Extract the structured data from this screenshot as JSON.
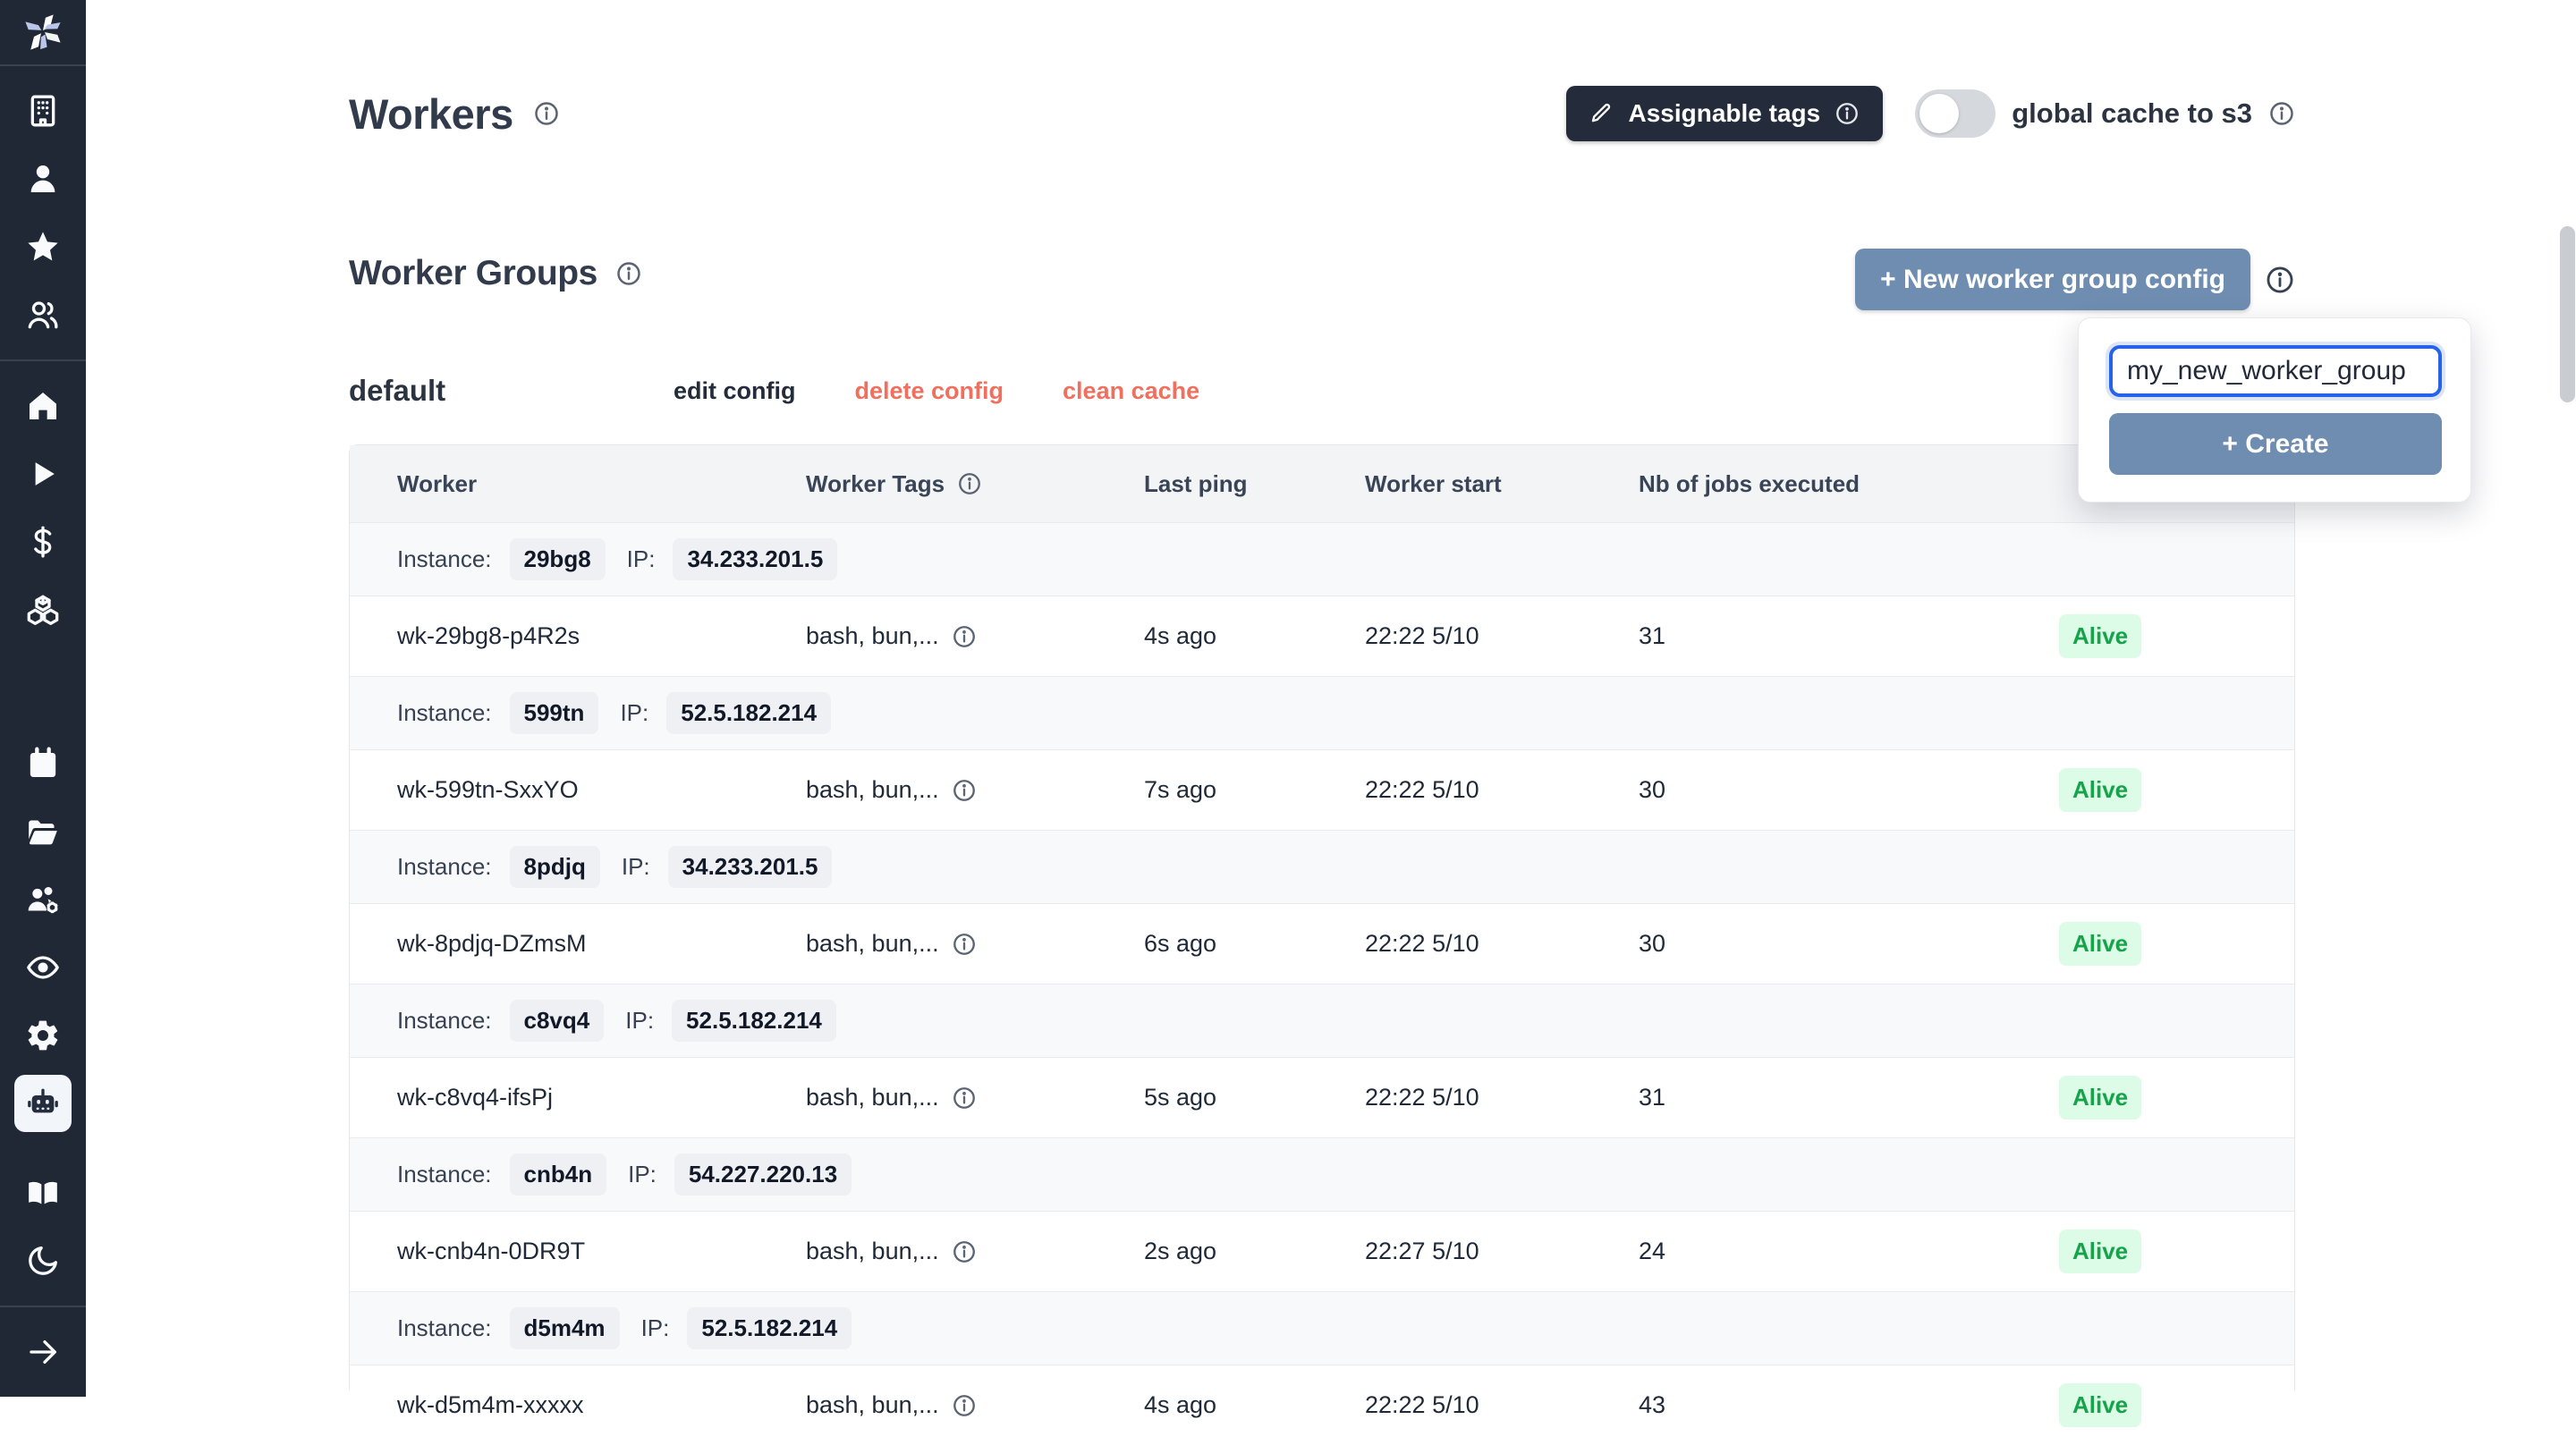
{
  "header": {
    "title": "Workers",
    "assignable_tags_label": "Assignable tags",
    "global_cache_label": "global cache to s3",
    "global_cache_enabled": false
  },
  "worker_groups": {
    "title": "Worker Groups",
    "new_button_label": "+ New worker group config",
    "popup": {
      "input_value": "my_new_worker_group",
      "create_label": "+ Create"
    }
  },
  "group": {
    "name": "default",
    "actions": [
      {
        "label": "edit config",
        "style": "dark"
      },
      {
        "label": "delete config",
        "style": "red"
      },
      {
        "label": "clean cache",
        "style": "red"
      }
    ]
  },
  "table": {
    "headers": [
      "Worker",
      "Worker Tags",
      "Last ping",
      "Worker start",
      "Nb of jobs executed"
    ],
    "header_has_info": [
      false,
      true,
      false,
      false,
      false
    ],
    "rows": [
      {
        "type": "instance",
        "label": "Instance:",
        "id": "29bg8",
        "ip_label": "IP:",
        "ip": "34.233.201.5"
      },
      {
        "type": "worker",
        "name": "wk-29bg8-p4R2s",
        "tags": "bash, bun,...",
        "ping": "4s ago",
        "start": "22:22 5/10",
        "jobs": "31",
        "status": "Alive"
      },
      {
        "type": "instance",
        "label": "Instance:",
        "id": "599tn",
        "ip_label": "IP:",
        "ip": "52.5.182.214"
      },
      {
        "type": "worker",
        "name": "wk-599tn-SxxYO",
        "tags": "bash, bun,...",
        "ping": "7s ago",
        "start": "22:22 5/10",
        "jobs": "30",
        "status": "Alive"
      },
      {
        "type": "instance",
        "label": "Instance:",
        "id": "8pdjq",
        "ip_label": "IP:",
        "ip": "34.233.201.5"
      },
      {
        "type": "worker",
        "name": "wk-8pdjq-DZmsM",
        "tags": "bash, bun,...",
        "ping": "6s ago",
        "start": "22:22 5/10",
        "jobs": "30",
        "status": "Alive"
      },
      {
        "type": "instance",
        "label": "Instance:",
        "id": "c8vq4",
        "ip_label": "IP:",
        "ip": "52.5.182.214"
      },
      {
        "type": "worker",
        "name": "wk-c8vq4-ifsPj",
        "tags": "bash, bun,...",
        "ping": "5s ago",
        "start": "22:22 5/10",
        "jobs": "31",
        "status": "Alive"
      },
      {
        "type": "instance",
        "label": "Instance:",
        "id": "cnb4n",
        "ip_label": "IP:",
        "ip": "54.227.220.13"
      },
      {
        "type": "worker",
        "name": "wk-cnb4n-0DR9T",
        "tags": "bash, bun,...",
        "ping": "2s ago",
        "start": "22:27 5/10",
        "jobs": "24",
        "status": "Alive"
      },
      {
        "type": "instance",
        "label": "Instance:",
        "id": "d5m4m",
        "ip_label": "IP:",
        "ip": "52.5.182.214"
      },
      {
        "type": "worker",
        "name": "wk-d5m4m-xxxxx",
        "tags": "bash, bun,...",
        "ping": "4s ago",
        "start": "22:22 5/10",
        "jobs": "43",
        "status": "Alive"
      }
    ]
  },
  "sidebar": {
    "top_items": [
      "building-icon",
      "user-icon",
      "star-icon",
      "users-icon"
    ],
    "nav_items": [
      "home-icon",
      "play-icon",
      "dollar-icon",
      "boxes-icon"
    ],
    "tool_items": [
      "calendar-icon",
      "folder-open-icon",
      "users-cog-icon",
      "eye-icon",
      "gear-icon",
      "robot-icon"
    ],
    "active_item": "robot-icon",
    "bottom_items": [
      "book-open-icon",
      "moon-icon"
    ],
    "footer_item": "arrow-right-icon"
  },
  "colors": {
    "sidebar_bg": "#212835",
    "accent_blue": "#6e8db1",
    "focus_blue": "#2563eb",
    "danger_red": "#f0705f",
    "alive_bg": "#dcfce7",
    "alive_text": "#16a34a",
    "dark_button": "#242c3b"
  }
}
